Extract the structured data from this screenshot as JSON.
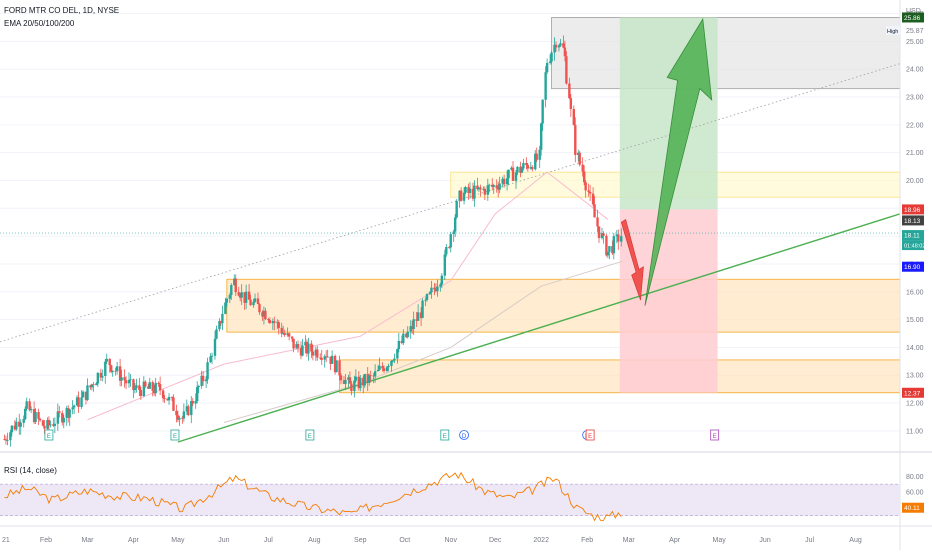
{
  "header": {
    "symbol": "FORD MTR CO DEL, 1D, NYSE",
    "indicator": "EMA 20/50/100/200"
  },
  "price_axis": {
    "currency": "USD",
    "high_label": "High",
    "high_value": "25.87"
  },
  "rsi_panel": {
    "label": "RSI (14, close)"
  },
  "colors": {
    "candle_up": "#26a69a",
    "candle_down": "#ef5350",
    "trendline": "#4caf50",
    "target_zone": "#c8e6c9",
    "stop_zone": "#ffcdd2",
    "support_zone": "#ffe0b2",
    "resistance_zone": "#fff9c4",
    "top_zone": "#e0e0e0",
    "rsi_line": "#f57c00",
    "rsi_band": "#ede7f6"
  },
  "chart_data": {
    "type": "candlestick",
    "x_range": [
      "2021-01-01",
      "2022-08-31"
    ],
    "y_range": [
      10.6,
      26.2
    ],
    "x_tick_labels": [
      "21",
      "Feb",
      "Mar",
      "Apr",
      "May",
      "Jun",
      "Jul",
      "Aug",
      "Sep",
      "Oct",
      "Nov",
      "Dec",
      "2022",
      "Feb",
      "Mar",
      "Apr",
      "May",
      "Jun",
      "Jul",
      "Aug"
    ],
    "y_tick_labels": [
      "11.00",
      "12.00",
      "13.00",
      "14.00",
      "15.00",
      "16.00",
      "17.00",
      "18.00",
      "19.00",
      "20.00",
      "21.00",
      "22.00",
      "23.00",
      "24.00",
      "25.00",
      "26.00"
    ],
    "price_tags": [
      {
        "value": "25.86",
        "color": "#1b5e20"
      },
      {
        "value": "18.96",
        "color": "#e53935"
      },
      {
        "value": "18.13",
        "color": "#424242"
      },
      {
        "value": "18.11",
        "color": "#26a69a"
      },
      {
        "value": "01:48:02",
        "color": "#26a69a"
      },
      {
        "value": "16.90",
        "color": "#1a1aff"
      },
      {
        "value": "12.37",
        "color": "#e53935"
      }
    ],
    "events": [
      {
        "date": "2021-02-03",
        "label": "E"
      },
      {
        "date": "2021-04-29",
        "label": "E"
      },
      {
        "date": "2021-07-29",
        "label": "E"
      },
      {
        "date": "2021-10-28",
        "label": "E"
      },
      {
        "date": "2021-11-10",
        "label": "D"
      },
      {
        "date": "2022-02-01",
        "label": "D"
      },
      {
        "date": "2022-02-03",
        "label": "E"
      },
      {
        "date": "2022-04-28",
        "label": "E"
      }
    ],
    "price_path": [
      [
        "2021-01-04",
        10.7
      ],
      [
        "2021-01-20",
        11.8
      ],
      [
        "2021-02-01",
        11.1
      ],
      [
        "2021-02-25",
        12.1
      ],
      [
        "2021-03-15",
        13.5
      ],
      [
        "2021-04-01",
        12.5
      ],
      [
        "2021-04-20",
        12.5
      ],
      [
        "2021-05-05",
        11.4
      ],
      [
        "2021-05-20",
        13.0
      ],
      [
        "2021-06-02",
        15.5
      ],
      [
        "2021-06-08",
        16.4
      ],
      [
        "2021-06-15",
        15.8
      ],
      [
        "2021-07-01",
        15.2
      ],
      [
        "2021-07-20",
        14.0
      ],
      [
        "2021-08-10",
        13.8
      ],
      [
        "2021-08-25",
        12.6
      ],
      [
        "2021-09-10",
        12.9
      ],
      [
        "2021-09-22",
        13.6
      ],
      [
        "2021-10-05",
        14.6
      ],
      [
        "2021-10-20",
        16.0
      ],
      [
        "2021-10-26",
        16.6
      ],
      [
        "2021-11-01",
        18.0
      ],
      [
        "2021-11-08",
        19.5
      ],
      [
        "2021-11-20",
        19.6
      ],
      [
        "2021-12-01",
        19.8
      ],
      [
        "2021-12-15",
        20.3
      ],
      [
        "2021-12-31",
        20.8
      ],
      [
        "2022-01-05",
        24.2
      ],
      [
        "2022-01-12",
        25.1
      ],
      [
        "2022-01-17",
        24.6
      ],
      [
        "2022-01-25",
        21.0
      ],
      [
        "2022-02-01",
        19.9
      ],
      [
        "2022-02-08",
        18.4
      ],
      [
        "2022-02-15",
        17.4
      ],
      [
        "2022-02-25",
        18.1
      ]
    ],
    "ema_path": [
      [
        "2021-03-01",
        11.4
      ],
      [
        "2021-06-01",
        13.4
      ],
      [
        "2021-09-01",
        14.4
      ],
      [
        "2021-11-01",
        16.4
      ],
      [
        "2021-12-01",
        18.8
      ],
      [
        "2022-01-05",
        20.3
      ],
      [
        "2022-02-15",
        18.6
      ]
    ],
    "slow_ema_path": [
      [
        "2021-06-01",
        11.3
      ],
      [
        "2021-09-01",
        12.7
      ],
      [
        "2021-11-01",
        14.0
      ],
      [
        "2022-01-01",
        16.2
      ],
      [
        "2022-02-25",
        17.1
      ]
    ],
    "trendlines": [
      {
        "style": "solid",
        "from": [
          "2021-05-01",
          10.6
        ],
        "to": [
          "2022-08-31",
          18.8
        ]
      },
      {
        "style": "dotted",
        "from": [
          "2021-01-01",
          14.2
        ],
        "to": [
          "2022-08-31",
          24.2
        ]
      }
    ],
    "zones": [
      {
        "kind": "top",
        "x": [
          "2022-01-08",
          "2022-08-31"
        ],
        "y": [
          23.3,
          25.86
        ]
      },
      {
        "kind": "resistance",
        "x": [
          "2021-11-01",
          "2022-08-31"
        ],
        "y": [
          19.4,
          20.3
        ]
      },
      {
        "kind": "support",
        "x": [
          "2021-06-03",
          "2022-08-31"
        ],
        "y": [
          14.55,
          16.45
        ]
      },
      {
        "kind": "support",
        "x": [
          "2021-08-18",
          "2022-08-31"
        ],
        "y": [
          12.37,
          13.55
        ]
      },
      {
        "kind": "target",
        "x": [
          "2022-02-23",
          "2022-04-30"
        ],
        "y": [
          18.96,
          25.86
        ]
      },
      {
        "kind": "stop",
        "x": [
          "2022-02-23",
          "2022-04-30"
        ],
        "y": [
          12.37,
          18.96
        ]
      }
    ],
    "rsi_ticks": [
      "80.00",
      "60.00",
      "40.11"
    ],
    "rsi_band": [
      30,
      70
    ],
    "rsi_range": [
      22,
      88
    ],
    "rsi_path": [
      [
        "2021-01-04",
        55
      ],
      [
        "2021-01-20",
        65
      ],
      [
        "2021-02-05",
        50
      ],
      [
        "2021-03-01",
        62
      ],
      [
        "2021-03-20",
        55
      ],
      [
        "2021-04-10",
        52
      ],
      [
        "2021-05-05",
        38
      ],
      [
        "2021-05-25",
        60
      ],
      [
        "2021-06-08",
        78
      ],
      [
        "2021-07-01",
        55
      ],
      [
        "2021-07-25",
        42
      ],
      [
        "2021-08-25",
        32
      ],
      [
        "2021-09-20",
        50
      ],
      [
        "2021-10-10",
        65
      ],
      [
        "2021-11-05",
        84
      ],
      [
        "2021-11-25",
        60
      ],
      [
        "2021-12-10",
        52
      ],
      [
        "2021-12-25",
        62
      ],
      [
        "2022-01-10",
        78
      ],
      [
        "2022-01-25",
        40
      ],
      [
        "2022-02-05",
        30
      ],
      [
        "2022-02-15",
        28
      ],
      [
        "2022-02-25",
        35
      ]
    ]
  }
}
